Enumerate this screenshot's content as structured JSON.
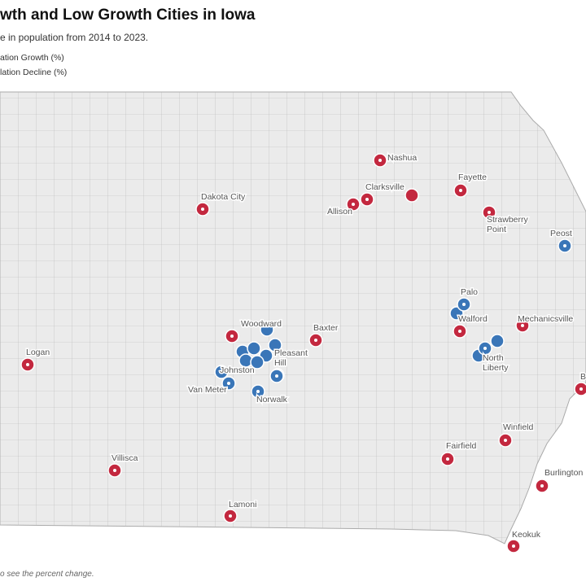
{
  "header": {
    "title": "wth and Low Growth Cities in Iowa",
    "subtitle": "e in population from 2014 to 2023."
  },
  "legend": [
    {
      "label": "ation Growth (%)",
      "color": "#3a76b8",
      "cities": [
        [
          "Peost"
        ],
        [
          "Palo"
        ],
        [
          "North",
          "Liberty"
        ],
        [
          "Pleasant",
          "Hill"
        ],
        [
          "Johnston"
        ],
        [
          "Van Meter"
        ],
        [
          "Norwalk"
        ]
      ]
    },
    {
      "label": "lation Decline (%)",
      "color": "#c3283f",
      "cities": [
        [
          "Nashua"
        ],
        [
          "Clarksville"
        ],
        [
          "Allison"
        ],
        [
          "Fayette"
        ],
        [
          "Dakota City"
        ],
        [
          "Strawberry",
          "Point"
        ],
        [
          "Mechanicsville"
        ],
        [
          "Woodward"
        ],
        [
          "Walford"
        ],
        [
          "Baxter"
        ],
        [
          "Logan"
        ],
        [
          "Villisca"
        ],
        [
          "Lamoni"
        ],
        [
          "Fairfield"
        ],
        [
          "Winfield"
        ],
        [
          "Burlington"
        ],
        [
          "Keokuk"
        ],
        [
          "B"
        ]
      ]
    }
  ],
  "footer": "o see the percent change."
}
